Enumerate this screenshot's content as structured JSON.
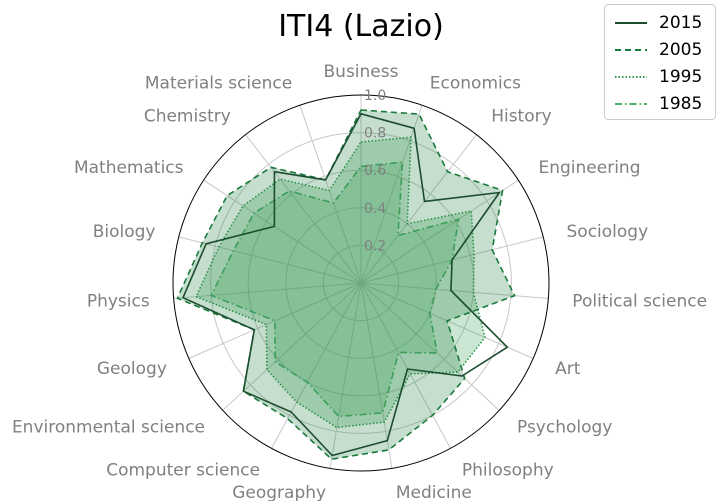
{
  "chart_data": {
    "type": "radar",
    "title": "ITI4 (Lazio)",
    "categories": [
      "Business",
      "Economics",
      "History",
      "Engineering",
      "Sociology",
      "Political science",
      "Art",
      "Psychology",
      "Philosophy",
      "Medicine",
      "Geography",
      "Computer science",
      "Environmental science",
      "Geology",
      "Physics",
      "Biology",
      "Mathematics",
      "Chemistry",
      "Materials science"
    ],
    "rlim": [
      0,
      1.0
    ],
    "rticks": [
      "0.2",
      "0.4",
      "0.6",
      "0.8",
      "1.0"
    ],
    "grid": true,
    "legend_position": "top-right",
    "series": [
      {
        "name": "2015",
        "color": "#1b4d2e",
        "dash": "solid",
        "fill_opacity": 0.0,
        "values": [
          0.9,
          0.87,
          0.55,
          0.88,
          0.5,
          0.48,
          0.85,
          0.73,
          0.52,
          0.85,
          0.93,
          0.78,
          0.85,
          0.62,
          0.95,
          0.85,
          0.55,
          0.75,
          0.58
        ]
      },
      {
        "name": "2005",
        "color": "#1a7a3a",
        "dash": "dashed",
        "fill_opacity": 0.25,
        "values": [
          0.92,
          0.95,
          0.75,
          0.9,
          0.72,
          0.82,
          0.5,
          0.75,
          0.8,
          0.9,
          0.95,
          0.82,
          0.85,
          0.62,
          0.98,
          0.87,
          0.85,
          0.78,
          0.58
        ]
      },
      {
        "name": "1995",
        "color": "#2e9a4e",
        "dash": "dotted",
        "fill_opacity": 0.25,
        "values": [
          0.75,
          0.82,
          0.4,
          0.7,
          0.62,
          0.6,
          0.72,
          0.7,
          0.55,
          0.75,
          0.78,
          0.72,
          0.68,
          0.55,
          0.88,
          0.78,
          0.75,
          0.7,
          0.52
        ]
      },
      {
        "name": "1985",
        "color": "#4caf68",
        "dash": "dashdot",
        "fill_opacity": 0.25,
        "values": [
          0.62,
          0.68,
          0.32,
          0.62,
          0.5,
          0.4,
          0.4,
          0.55,
          0.42,
          0.7,
          0.72,
          0.6,
          0.62,
          0.5,
          0.8,
          0.7,
          0.68,
          0.62,
          0.45
        ]
      }
    ]
  }
}
